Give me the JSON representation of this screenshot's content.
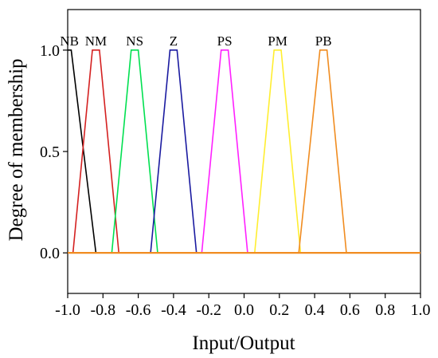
{
  "chart_data": {
    "type": "line",
    "title": "",
    "xlabel": "Input/Output",
    "ylabel": "Degree of membership",
    "xlim": [
      -1.0,
      1.0
    ],
    "ylim": [
      -0.2,
      1.2
    ],
    "grid": false,
    "xticks": [
      -1.0,
      -0.8,
      -0.6,
      -0.4,
      -0.2,
      0.0,
      0.2,
      0.4,
      0.6,
      0.8,
      1.0
    ],
    "xtick_labels": [
      "-1.0",
      "-0.8",
      "-0.6",
      "-0.4",
      "-0.2",
      "0.0",
      "0.2",
      "0.4",
      "0.6",
      "0.8",
      "1.0"
    ],
    "yticks": [
      0.0,
      0.5,
      1.0
    ],
    "ytick_labels": [
      "0.0",
      "0.5",
      "1.0"
    ],
    "series": [
      {
        "name": "NB",
        "color": "#000000",
        "x": [
          -1.0,
          -0.98,
          -0.84
        ],
        "y": [
          1,
          1,
          0
        ]
      },
      {
        "name": "NM",
        "color": "#d42020",
        "x": [
          -0.97,
          -0.86,
          -0.82,
          -0.71
        ],
        "y": [
          0,
          1,
          1,
          0
        ]
      },
      {
        "name": "NS",
        "color": "#00e050",
        "x": [
          -0.75,
          -0.64,
          -0.6,
          -0.49
        ],
        "y": [
          0,
          1,
          1,
          0
        ]
      },
      {
        "name": "Z",
        "color": "#1a1aa0",
        "x": [
          -0.53,
          -0.42,
          -0.38,
          -0.27
        ],
        "y": [
          0,
          1,
          1,
          0
        ]
      },
      {
        "name": "PS",
        "color": "#ff20ff",
        "x": [
          -0.24,
          -0.13,
          -0.09,
          0.02
        ],
        "y": [
          0,
          1,
          1,
          0
        ]
      },
      {
        "name": "PM",
        "color": "#ffee30",
        "x": [
          0.06,
          0.17,
          0.21,
          0.32
        ],
        "y": [
          0,
          1,
          1,
          0
        ]
      },
      {
        "name": "PB",
        "color": "#f08c20",
        "x": [
          0.31,
          0.43,
          0.47,
          0.58
        ],
        "y": [
          0,
          1,
          1,
          0
        ]
      }
    ],
    "baseline": {
      "color": "#f08c20",
      "y": 0
    }
  }
}
